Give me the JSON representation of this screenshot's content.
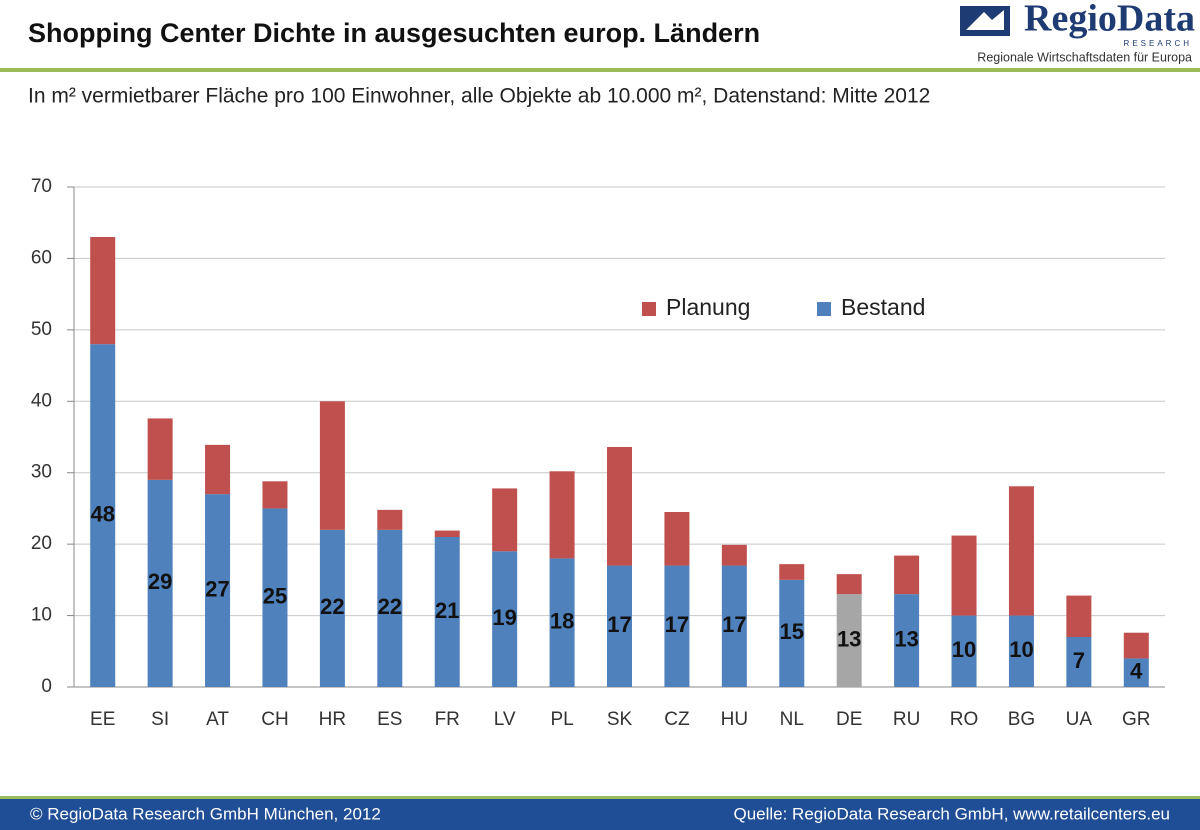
{
  "header": {
    "title": "Shopping Center Dichte in ausgesuchten europ. Ländern",
    "logo_name": "RegioData",
    "logo_sub": "RESEARCH",
    "logo_tagline": "Regionale Wirtschaftsdaten für Europa"
  },
  "subtitle": "In m² vermietbarer Fläche pro 100 Einwohner, alle Objekte ab 10.000 m², Datenstand: Mitte 2012",
  "chart_data": {
    "type": "bar",
    "stacked": true,
    "categories": [
      "EE",
      "SI",
      "AT",
      "CH",
      "HR",
      "ES",
      "FR",
      "LV",
      "PL",
      "SK",
      "CZ",
      "HU",
      "NL",
      "DE",
      "RU",
      "RO",
      "BG",
      "UA",
      "GR"
    ],
    "series": [
      {
        "name": "Bestand",
        "color": "#4f81bd",
        "colors": [
          "#4f81bd",
          "#4f81bd",
          "#4f81bd",
          "#4f81bd",
          "#4f81bd",
          "#4f81bd",
          "#4f81bd",
          "#4f81bd",
          "#4f81bd",
          "#4f81bd",
          "#4f81bd",
          "#4f81bd",
          "#4f81bd",
          "#a6a6a6",
          "#4f81bd",
          "#4f81bd",
          "#4f81bd",
          "#4f81bd",
          "#4f81bd"
        ],
        "values": [
          48,
          29,
          27,
          25,
          22,
          22,
          21,
          19,
          18,
          17,
          17,
          17,
          15,
          13,
          13,
          10,
          10,
          7,
          4
        ],
        "data_labels": true
      },
      {
        "name": "Planung",
        "color": "#c0504d",
        "values": [
          15,
          8.6,
          6.9,
          3.8,
          18,
          2.8,
          0.9,
          8.8,
          12.2,
          16.6,
          7.5,
          2.9,
          2.2,
          2.8,
          5.4,
          11.2,
          18.1,
          5.8,
          3.6
        ]
      }
    ],
    "ylim": [
      0,
      70
    ],
    "yticks": [
      0,
      10,
      20,
      30,
      40,
      50,
      60,
      70
    ],
    "grid": true
  },
  "footer": {
    "left": "© RegioData Research GmbH München, 2012",
    "right": "Quelle: RegioData Research GmbH, www.retailcenters.eu"
  }
}
